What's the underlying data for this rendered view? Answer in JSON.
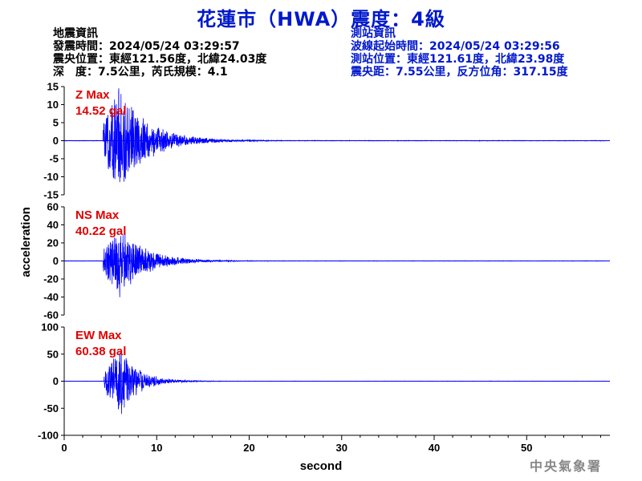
{
  "title": "花蓮市（HWA）震度：4級",
  "quake_info": {
    "heading": "地震資訊",
    "origin_time": "發震時間：2024/05/24 03:29:57",
    "epicenter": "震央位置：東經121.56度，北緯24.03度",
    "depth_mag": "深　度：7.5公里，芮氏規模：4.1"
  },
  "station_info": {
    "heading": "測站資訊",
    "wave_start": "波線起始時間：2024/05/24 03:29:56",
    "location": "測站位置：東經121.61度，北緯23.98度",
    "distance": "震央距：7.55公里，反方位角：317.15度"
  },
  "watermark": "中央氣象署",
  "chart_data": {
    "type": "line",
    "xlabel": "second",
    "ylabel": "acceleration",
    "xlim": [
      0,
      59
    ],
    "xticks": [
      0,
      10,
      20,
      30,
      40,
      50
    ],
    "line_color": "#0000ff",
    "label_color": "#e00000",
    "panels": [
      {
        "name": "Z",
        "label": "Z Max",
        "max_text": "14.52 gal",
        "ylim": [
          -15,
          15
        ],
        "yticks": [
          -15,
          -10,
          -5,
          0,
          5,
          10,
          15
        ],
        "peak": 14.52,
        "onset": 4.2,
        "peak_time": 5.9,
        "decay": 3.2,
        "noise": 0.2
      },
      {
        "name": "NS",
        "label": "NS Max",
        "max_text": "40.22 gal",
        "ylim": [
          -60,
          60
        ],
        "yticks": [
          -60,
          -40,
          -20,
          0,
          20,
          40,
          60
        ],
        "peak": 40.22,
        "onset": 4.2,
        "peak_time": 6.0,
        "decay": 2.8,
        "noise": 0.6
      },
      {
        "name": "EW",
        "label": "EW Max",
        "max_text": "60.38 gal",
        "ylim": [
          -100,
          100
        ],
        "yticks": [
          -100,
          -50,
          0,
          50,
          100
        ],
        "peak": 60.38,
        "onset": 4.3,
        "peak_time": 6.2,
        "decay": 2.0,
        "noise": 0.8
      }
    ]
  }
}
